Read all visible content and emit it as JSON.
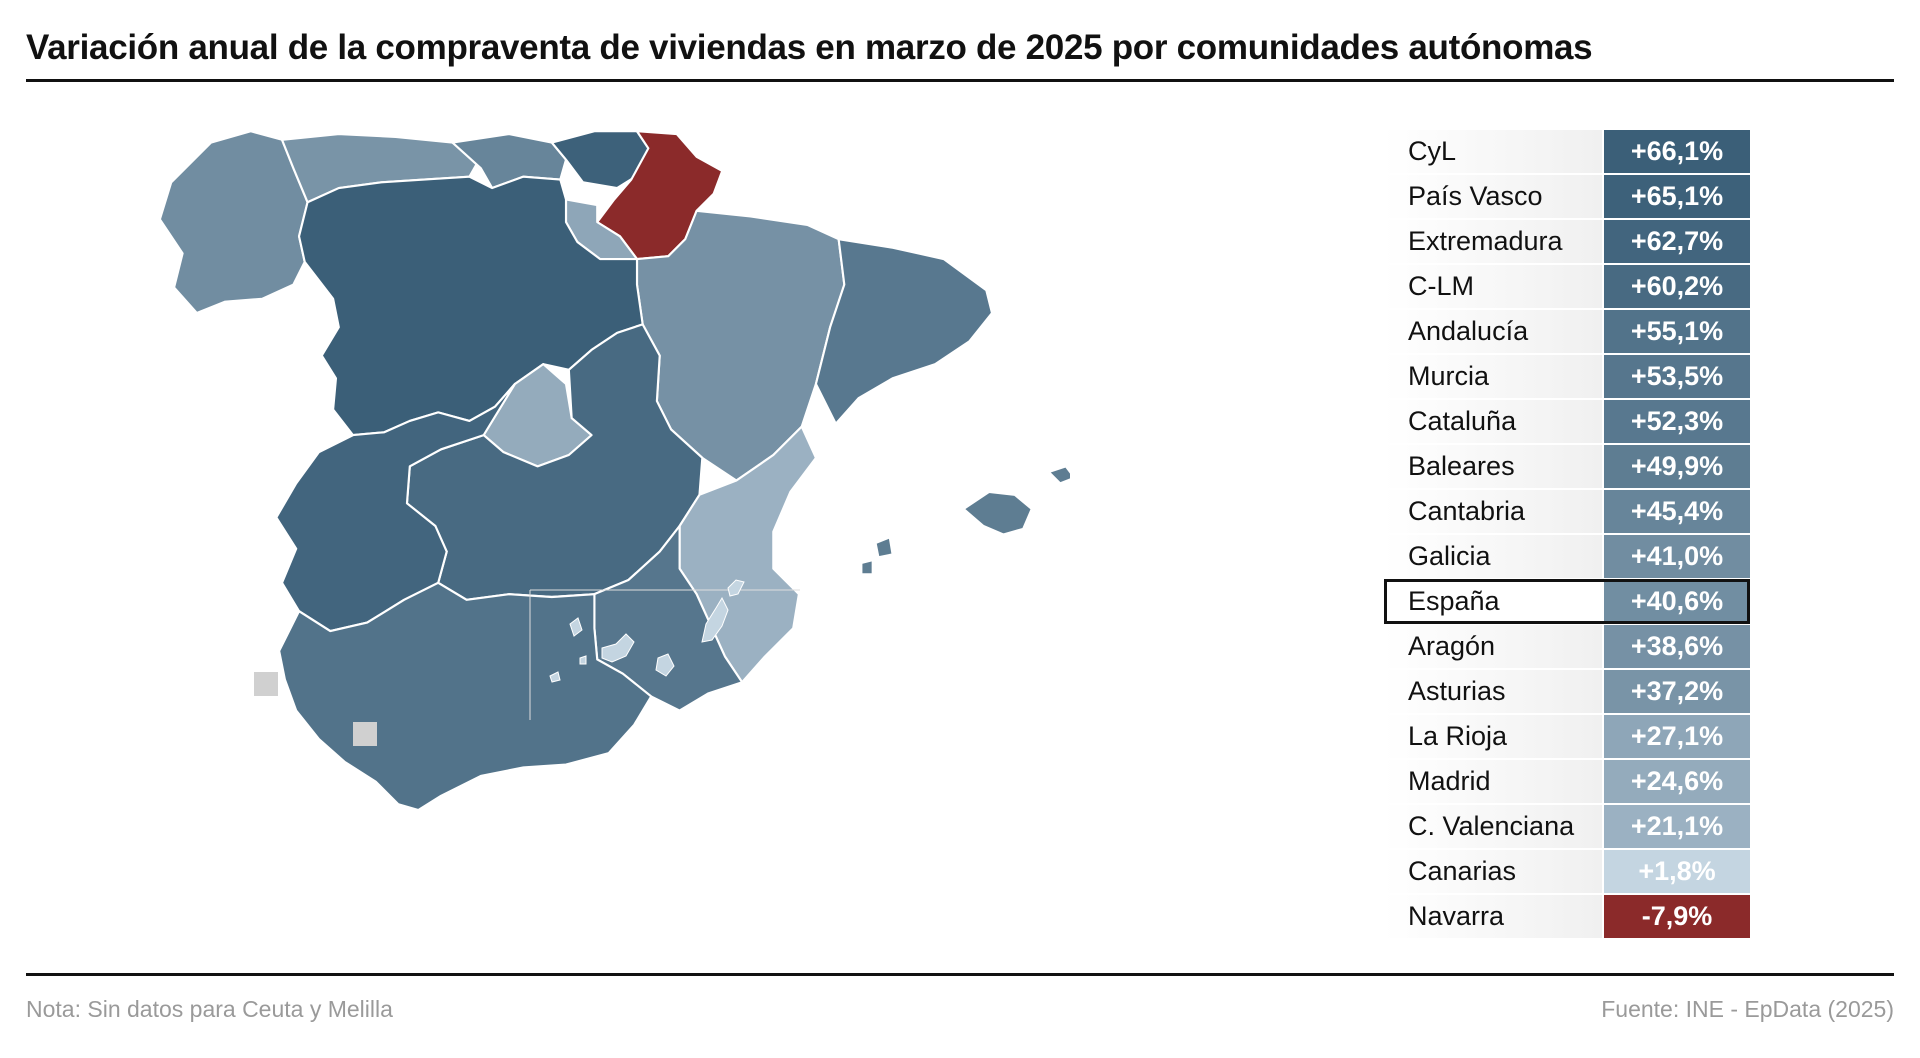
{
  "title": "Variación anual de la compraventa de viviendas en marzo de 2025 por comunidades autónomas",
  "colors": {
    "negative": "#8b2a2a",
    "no_data": "#d0d0d0",
    "scale_low": "#c8d8e4",
    "scale_high": "#3b5f78"
  },
  "map": {
    "regions": [
      {
        "name": "Galicia",
        "value": 41.0
      },
      {
        "name": "Asturias",
        "value": 37.2
      },
      {
        "name": "Cantabria",
        "value": 45.4
      },
      {
        "name": "País Vasco",
        "value": 65.1
      },
      {
        "name": "Navarra",
        "value": -7.9
      },
      {
        "name": "La Rioja",
        "value": 27.1
      },
      {
        "name": "Aragón",
        "value": 38.6
      },
      {
        "name": "Cataluña",
        "value": 52.3
      },
      {
        "name": "CyL",
        "value": 66.1
      },
      {
        "name": "Madrid",
        "value": 24.6
      },
      {
        "name": "C-LM",
        "value": 60.2
      },
      {
        "name": "Extremadura",
        "value": 62.7
      },
      {
        "name": "C. Valenciana",
        "value": 21.1
      },
      {
        "name": "Murcia",
        "value": 53.5
      },
      {
        "name": "Andalucía",
        "value": 55.1
      },
      {
        "name": "Baleares",
        "value": 49.9
      },
      {
        "name": "Canarias",
        "value": 1.8
      }
    ],
    "no_data": [
      "Ceuta",
      "Melilla"
    ]
  },
  "table": {
    "rows": [
      {
        "name": "CyL",
        "value": "+66,1%",
        "num": 66.1
      },
      {
        "name": "País Vasco",
        "value": "+65,1%",
        "num": 65.1
      },
      {
        "name": "Extremadura",
        "value": "+62,7%",
        "num": 62.7
      },
      {
        "name": "C-LM",
        "value": "+60,2%",
        "num": 60.2
      },
      {
        "name": "Andalucía",
        "value": "+55,1%",
        "num": 55.1
      },
      {
        "name": "Murcia",
        "value": "+53,5%",
        "num": 53.5
      },
      {
        "name": "Cataluña",
        "value": "+52,3%",
        "num": 52.3
      },
      {
        "name": "Baleares",
        "value": "+49,9%",
        "num": 49.9
      },
      {
        "name": "Cantabria",
        "value": "+45,4%",
        "num": 45.4
      },
      {
        "name": "Galicia",
        "value": "+41,0%",
        "num": 41.0
      },
      {
        "name": "España",
        "value": "+40,6%",
        "num": 40.6,
        "highlight": true
      },
      {
        "name": "Aragón",
        "value": "+38,6%",
        "num": 38.6
      },
      {
        "name": "Asturias",
        "value": "+37,2%",
        "num": 37.2
      },
      {
        "name": "La Rioja",
        "value": "+27,1%",
        "num": 27.1
      },
      {
        "name": "Madrid",
        "value": "+24,6%",
        "num": 24.6
      },
      {
        "name": "C. Valenciana",
        "value": "+21,1%",
        "num": 21.1
      },
      {
        "name": "Canarias",
        "value": "+1,8%",
        "num": 1.8
      },
      {
        "name": "Navarra",
        "value": "-7,9%",
        "num": -7.9
      }
    ]
  },
  "footer": {
    "note": "Nota: Sin datos para Ceuta y Melilla",
    "source": "Fuente: INE - EpData (2025)"
  }
}
